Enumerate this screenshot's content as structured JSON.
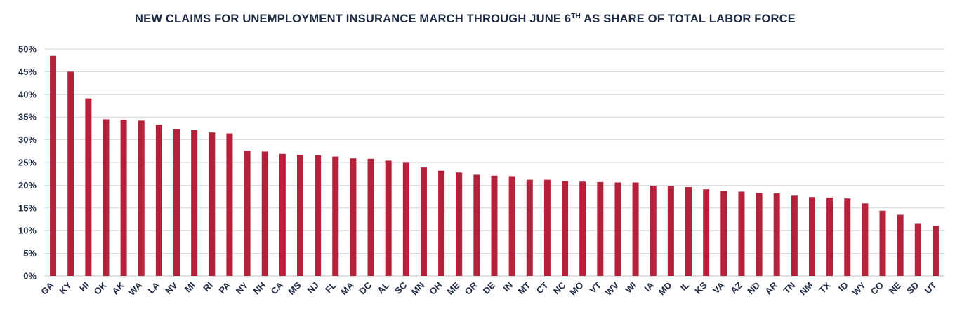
{
  "chart_data": {
    "type": "bar",
    "title_main": "NEW CLAIMS FOR UNEMPLOYMENT INSURANCE MARCH THROUGH JUNE 6",
    "title_sup": "TH",
    "title_rest": " AS SHARE OF TOTAL LABOR FORCE",
    "xlabel": "",
    "ylabel": "",
    "ylim": [
      0,
      50
    ],
    "yticks": [
      "0%",
      "5%",
      "10%",
      "15%",
      "20%",
      "25%",
      "30%",
      "35%",
      "40%",
      "45%",
      "50%"
    ],
    "grid": true,
    "bar_color": "#b5213a",
    "grid_color": "#cfd8e3",
    "categories": [
      "GA",
      "KY",
      "HI",
      "OK",
      "AK",
      "WA",
      "LA",
      "NV",
      "MI",
      "RI",
      "PA",
      "NY",
      "NH",
      "CA",
      "MS",
      "NJ",
      "FL",
      "MA",
      "DC",
      "AL",
      "SC",
      "MN",
      "OH",
      "ME",
      "OR",
      "DE",
      "IN",
      "MT",
      "CT",
      "NC",
      "MO",
      "VT",
      "WV",
      "WI",
      "IA",
      "MD",
      "IL",
      "KS",
      "VA",
      "AZ",
      "ND",
      "AR",
      "TN",
      "NM",
      "TX",
      "ID",
      "WY",
      "CO",
      "NE",
      "SD",
      "UT"
    ],
    "values": [
      48.5,
      45.0,
      39.1,
      34.5,
      34.4,
      34.2,
      33.3,
      32.4,
      32.1,
      31.6,
      31.4,
      27.6,
      27.4,
      26.9,
      26.7,
      26.6,
      26.3,
      25.9,
      25.8,
      25.4,
      25.1,
      23.9,
      23.2,
      22.8,
      22.3,
      22.1,
      22.0,
      21.2,
      21.2,
      20.9,
      20.8,
      20.7,
      20.6,
      20.6,
      19.9,
      19.8,
      19.6,
      19.1,
      18.8,
      18.6,
      18.3,
      18.2,
      17.7,
      17.4,
      17.3,
      17.1,
      16.0,
      14.4,
      13.5,
      11.5,
      11.1
    ]
  }
}
